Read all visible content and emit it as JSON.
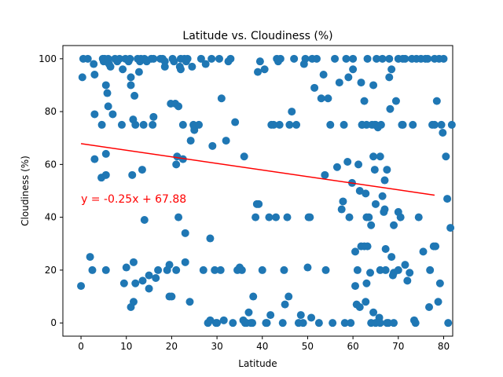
{
  "chart_data": {
    "type": "scatter",
    "title": "Latitude vs. Cloudiness (%)",
    "xlabel": "Latitude",
    "ylabel": "Cloudiness (%)",
    "xlim": [
      -4,
      82
    ],
    "ylim": [
      -5,
      105
    ],
    "xticks": [
      0,
      10,
      20,
      30,
      40,
      50,
      60,
      70,
      80
    ],
    "yticks": [
      0,
      20,
      40,
      60,
      80,
      100
    ],
    "grid": false,
    "colors": {
      "points": "#1f77b4",
      "regression": "#ff0000",
      "annotation": "#ff0000"
    },
    "regression": {
      "slope": -0.25,
      "intercept": 67.88,
      "x_range": [
        0,
        78
      ]
    },
    "annotation": {
      "text": "y = -0.25x + 67.88",
      "x": 0,
      "y": 45.5
    },
    "points": [
      [
        0,
        14
      ],
      [
        0.3,
        93
      ],
      [
        0.5,
        100
      ],
      [
        1.5,
        100
      ],
      [
        2,
        25
      ],
      [
        2.5,
        20
      ],
      [
        2.8,
        98
      ],
      [
        3,
        94
      ],
      [
        3,
        79
      ],
      [
        3,
        62
      ],
      [
        4.5,
        55
      ],
      [
        4.6,
        75
      ],
      [
        4.8,
        100
      ],
      [
        5,
        99
      ],
      [
        5.2,
        100
      ],
      [
        5.5,
        56
      ],
      [
        5.5,
        64
      ],
      [
        5.5,
        90
      ],
      [
        5.8,
        87
      ],
      [
        6,
        82
      ],
      [
        5.5,
        20
      ],
      [
        6,
        100
      ],
      [
        6.2,
        98
      ],
      [
        6.5,
        97
      ],
      [
        7,
        79
      ],
      [
        7.5,
        100
      ],
      [
        8,
        99
      ],
      [
        8.5,
        100
      ],
      [
        9,
        75
      ],
      [
        9.2,
        96
      ],
      [
        9.5,
        15
      ],
      [
        9.8,
        100
      ],
      [
        10,
        21
      ],
      [
        10.5,
        99
      ],
      [
        10.8,
        100
      ],
      [
        11,
        90
      ],
      [
        11,
        93
      ],
      [
        11,
        6
      ],
      [
        11.3,
        56
      ],
      [
        11.5,
        77
      ],
      [
        11.6,
        8
      ],
      [
        11.8,
        86
      ],
      [
        11.6,
        23
      ],
      [
        12,
        75
      ],
      [
        12,
        15
      ],
      [
        12.5,
        100
      ],
      [
        12.8,
        95
      ],
      [
        13,
        99
      ],
      [
        13.2,
        100
      ],
      [
        13.5,
        58
      ],
      [
        13.6,
        16
      ],
      [
        13.8,
        75
      ],
      [
        14,
        39
      ],
      [
        14,
        100
      ],
      [
        14.5,
        99
      ],
      [
        15,
        18
      ],
      [
        15,
        13
      ],
      [
        15.5,
        100
      ],
      [
        15.8,
        75
      ],
      [
        16,
        100
      ],
      [
        16,
        78
      ],
      [
        16.5,
        17
      ],
      [
        17,
        20
      ],
      [
        17.5,
        100
      ],
      [
        18,
        100
      ],
      [
        18.5,
        99
      ],
      [
        18.5,
        97
      ],
      [
        19,
        20
      ],
      [
        19.5,
        22
      ],
      [
        19.5,
        10
      ],
      [
        19.8,
        83
      ],
      [
        20,
        10
      ],
      [
        20.2,
        100
      ],
      [
        20.5,
        99
      ],
      [
        20.8,
        83
      ],
      [
        21,
        20
      ],
      [
        21,
        60
      ],
      [
        21.2,
        63
      ],
      [
        21.5,
        40
      ],
      [
        21.5,
        82
      ],
      [
        21.8,
        97
      ],
      [
        22,
        100
      ],
      [
        22,
        96
      ],
      [
        22.5,
        62
      ],
      [
        22.5,
        75
      ],
      [
        22.8,
        100
      ],
      [
        23,
        34
      ],
      [
        23,
        23
      ],
      [
        23.2,
        99
      ],
      [
        23.5,
        100
      ],
      [
        24,
        8
      ],
      [
        24.2,
        69
      ],
      [
        24.5,
        97
      ],
      [
        24.8,
        75
      ],
      [
        25,
        74
      ],
      [
        25,
        73
      ],
      [
        26,
        75
      ],
      [
        26.5,
        100
      ],
      [
        27,
        20
      ],
      [
        27.5,
        98
      ],
      [
        28,
        0
      ],
      [
        28.5,
        32
      ],
      [
        28.5,
        1
      ],
      [
        28.8,
        100
      ],
      [
        29,
        67
      ],
      [
        29.5,
        20
      ],
      [
        29.8,
        0
      ],
      [
        30,
        0
      ],
      [
        30.5,
        100
      ],
      [
        30.8,
        20
      ],
      [
        31,
        85
      ],
      [
        31.5,
        1
      ],
      [
        32,
        69
      ],
      [
        32.5,
        99
      ],
      [
        33,
        100
      ],
      [
        33.5,
        0
      ],
      [
        34,
        76
      ],
      [
        34.5,
        20
      ],
      [
        35,
        21
      ],
      [
        35.5,
        20
      ],
      [
        35.8,
        1
      ],
      [
        36,
        63
      ],
      [
        36.2,
        0
      ],
      [
        36.5,
        0
      ],
      [
        37,
        4
      ],
      [
        37.5,
        0
      ],
      [
        37.8,
        0
      ],
      [
        38,
        10
      ],
      [
        38.5,
        40
      ],
      [
        38.8,
        45
      ],
      [
        39,
        95
      ],
      [
        39.2,
        45
      ],
      [
        39.5,
        99
      ],
      [
        40,
        20
      ],
      [
        40.5,
        96
      ],
      [
        40.8,
        0
      ],
      [
        41,
        0
      ],
      [
        41.5,
        40
      ],
      [
        41.8,
        3
      ],
      [
        42,
        75
      ],
      [
        42.5,
        75
      ],
      [
        43,
        40
      ],
      [
        43.2,
        100
      ],
      [
        43.5,
        99
      ],
      [
        43.8,
        75
      ],
      [
        44,
        100
      ],
      [
        44.5,
        0
      ],
      [
        44.8,
        20
      ],
      [
        45,
        7
      ],
      [
        45.5,
        40
      ],
      [
        45.8,
        10
      ],
      [
        46,
        75
      ],
      [
        46.5,
        80
      ],
      [
        47,
        100
      ],
      [
        47.5,
        75
      ],
      [
        48,
        0
      ],
      [
        48.5,
        3
      ],
      [
        49,
        0
      ],
      [
        49.2,
        98
      ],
      [
        49.5,
        100
      ],
      [
        50,
        21
      ],
      [
        50.2,
        40
      ],
      [
        50.5,
        40
      ],
      [
        50.8,
        2
      ],
      [
        51,
        100
      ],
      [
        51.5,
        89
      ],
      [
        52,
        100
      ],
      [
        52.5,
        0
      ],
      [
        53,
        85
      ],
      [
        53.5,
        94
      ],
      [
        53.8,
        56
      ],
      [
        54,
        20
      ],
      [
        54.5,
        85
      ],
      [
        55,
        75
      ],
      [
        55.5,
        0
      ],
      [
        56,
        100
      ],
      [
        56.5,
        59
      ],
      [
        57,
        91
      ],
      [
        57.5,
        43
      ],
      [
        57.8,
        46
      ],
      [
        58,
        75
      ],
      [
        58.2,
        0
      ],
      [
        58.5,
        100
      ],
      [
        58.8,
        61
      ],
      [
        59,
        93
      ],
      [
        59.2,
        40
      ],
      [
        59.5,
        0
      ],
      [
        59.8,
        53
      ],
      [
        60,
        96
      ],
      [
        60.5,
        14
      ],
      [
        60.8,
        7
      ],
      [
        61,
        20
      ],
      [
        61.2,
        60
      ],
      [
        61.5,
        50
      ],
      [
        61.8,
        91
      ],
      [
        62,
        75
      ],
      [
        62.5,
        29
      ],
      [
        62.8,
        49
      ],
      [
        63,
        75
      ],
      [
        63.2,
        100
      ],
      [
        63.5,
        40
      ],
      [
        63.8,
        19
      ],
      [
        64,
        0
      ],
      [
        64.2,
        75
      ],
      [
        64.5,
        4
      ],
      [
        64.8,
        58
      ],
      [
        65,
        45
      ],
      [
        65.2,
        100
      ],
      [
        65.5,
        74
      ],
      [
        65.8,
        2
      ],
      [
        66,
        20
      ],
      [
        66.2,
        75
      ],
      [
        66.5,
        48
      ],
      [
        66.8,
        42
      ],
      [
        67,
        54
      ],
      [
        67.2,
        20
      ],
      [
        67.5,
        0
      ],
      [
        67.8,
        0
      ],
      [
        68,
        100
      ],
      [
        68.2,
        81
      ],
      [
        68.5,
        25
      ],
      [
        68.8,
        18
      ],
      [
        69,
        19
      ],
      [
        69.5,
        84
      ],
      [
        70,
        20
      ],
      [
        70,
        42
      ],
      [
        70.5,
        40
      ],
      [
        70.8,
        75
      ],
      [
        71,
        75
      ],
      [
        71.5,
        100
      ],
      [
        72,
        16
      ],
      [
        72.5,
        19
      ],
      [
        73,
        100
      ],
      [
        73.2,
        75
      ],
      [
        73.5,
        1
      ],
      [
        73.8,
        0
      ],
      [
        74,
        100
      ],
      [
        74.5,
        40
      ],
      [
        75,
        100
      ],
      [
        75.5,
        27
      ],
      [
        76,
        100
      ],
      [
        76.5,
        100
      ],
      [
        76.8,
        6
      ],
      [
        77,
        20
      ],
      [
        77.5,
        75
      ],
      [
        77.8,
        29
      ],
      [
        78,
        100
      ],
      [
        78.2,
        29
      ],
      [
        78.5,
        84
      ],
      [
        78.8,
        8
      ],
      [
        79,
        100
      ],
      [
        79.2,
        15
      ],
      [
        79.5,
        75
      ],
      [
        79.8,
        72
      ],
      [
        80,
        100
      ],
      [
        80.5,
        63
      ],
      [
        80.8,
        47
      ],
      [
        81,
        0
      ],
      [
        81.5,
        36
      ],
      [
        81.8,
        75
      ],
      [
        62,
        75
      ],
      [
        63,
        40
      ],
      [
        64,
        37
      ],
      [
        64.5,
        63
      ],
      [
        65,
        0
      ],
      [
        66,
        0
      ],
      [
        66.5,
        100
      ],
      [
        67,
        43
      ],
      [
        67.2,
        28
      ],
      [
        67.5,
        58
      ],
      [
        68,
        93
      ],
      [
        68.5,
        96
      ],
      [
        69,
        37
      ],
      [
        69,
        0
      ],
      [
        70,
        100
      ],
      [
        71,
        100
      ],
      [
        71.5,
        22
      ],
      [
        78,
        75
      ],
      [
        64.5,
        90
      ],
      [
        64.8,
        75
      ],
      [
        65,
        75
      ],
      [
        66,
        63
      ],
      [
        62.5,
        84
      ],
      [
        63,
        15
      ],
      [
        62.8,
        8
      ],
      [
        63.2,
        29
      ],
      [
        61.8,
        29
      ],
      [
        61.5,
        6
      ],
      [
        60.5,
        27
      ],
      [
        60,
        100
      ]
    ]
  }
}
